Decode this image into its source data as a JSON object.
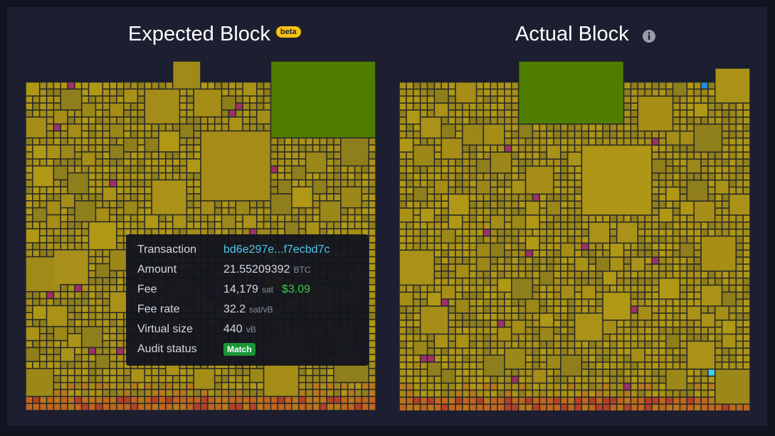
{
  "expected": {
    "title": "Expected Block",
    "badge": "beta"
  },
  "actual": {
    "title": "Actual Block"
  },
  "tooltip": {
    "rows": [
      {
        "label": "Transaction",
        "value": "bd6e297e...f7ecbd7c"
      },
      {
        "label": "Amount",
        "value": "21.55209392",
        "unit": "BTC"
      },
      {
        "label": "Fee",
        "value": "14,179",
        "unit": "sat",
        "fiat": "$3.09"
      },
      {
        "label": "Fee rate",
        "value": "32.2",
        "unit": "sat/vB"
      },
      {
        "label": "Virtual size",
        "value": "440",
        "unit": "vB"
      },
      {
        "label": "Audit status",
        "badge": "Match"
      }
    ]
  }
}
